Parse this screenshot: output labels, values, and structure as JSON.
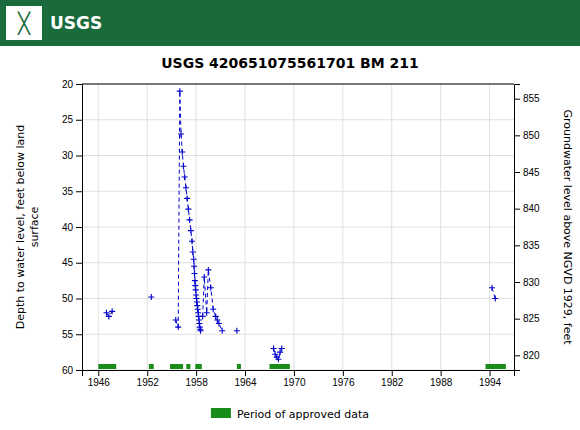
{
  "chart_data": {
    "type": "line",
    "title": "USGS 420651075561701 BM 211",
    "annotations": [
      "╳",
      "USGS"
    ],
    "y_label": "Depth to water level, feet below land\nsurface",
    "y2_label": "Groundwater level above NGVD 1929, feet",
    "xlim": [
      1944,
      1997
    ],
    "xticks": [
      1946,
      1952,
      1958,
      1964,
      1970,
      1976,
      1982,
      1988,
      1994
    ],
    "ylim": [
      60,
      20
    ],
    "yticks": [
      20,
      25,
      30,
      35,
      40,
      45,
      50,
      55,
      60
    ],
    "y2lim": [
      818,
      857
    ],
    "y2ticks": [
      855,
      850,
      845,
      840,
      835,
      830,
      825,
      820
    ],
    "grid": true,
    "legend": "bottom",
    "series": [
      {
        "type": "line",
        "color": "#0000cc",
        "line_style": "dashed",
        "marker": "plus",
        "x": [
          1947.0,
          1947.3,
          1947.7,
          null,
          1952.5,
          null,
          1955.5,
          1955.8,
          1956.0,
          1956.15,
          1956.3,
          1956.45,
          1956.6,
          1956.75,
          1956.9,
          1957.05,
          1957.2,
          1957.35,
          1957.5,
          1957.6,
          1957.7,
          1957.75,
          1957.8,
          1957.85,
          1957.9,
          1957.95,
          1958.0,
          1958.05,
          1958.1,
          1958.15,
          1958.2,
          1958.25,
          1958.3,
          1958.35,
          1958.4,
          1958.45,
          1958.5,
          1958.55,
          null,
          1958.8,
          1959.0,
          1959.3,
          1959.5,
          1959.8,
          1960.1,
          1960.4,
          1960.6,
          1960.8,
          1961.2,
          null,
          1963.0,
          null,
          1967.5,
          1967.7,
          1967.9,
          1968.1,
          1968.3,
          1968.5,
          null,
          1994.3,
          1994.7
        ],
        "values": [
          52.0,
          52.5,
          51.8,
          null,
          49.8,
          null,
          53.0,
          54.0,
          21.0,
          27.0,
          29.5,
          31.5,
          33.0,
          34.5,
          36.0,
          37.5,
          39.0,
          40.5,
          42.0,
          43.5,
          44.5,
          45.5,
          46.5,
          47.5,
          48.2,
          48.8,
          49.5,
          50.0,
          50.5,
          51.0,
          51.5,
          52.0,
          52.5,
          53.0,
          53.5,
          54.0,
          54.3,
          54.5,
          null,
          52.5,
          47.0,
          52.0,
          46.0,
          48.5,
          51.5,
          52.5,
          53.0,
          53.5,
          54.5,
          null,
          54.5,
          null,
          57.0,
          57.8,
          58.2,
          58.5,
          57.5,
          57.0,
          null,
          48.5,
          50.0
        ]
      },
      {
        "type": "range",
        "name": "Period of approved data",
        "color": "#1a8c1a",
        "ranges": [
          [
            1946.0,
            1948.2
          ],
          [
            1952.2,
            1952.8
          ],
          [
            1954.8,
            1956.4
          ],
          [
            1956.8,
            1957.3
          ],
          [
            1957.9,
            1958.7
          ],
          [
            1963.0,
            1963.5
          ],
          [
            1967.0,
            1969.5
          ],
          [
            1993.5,
            1996.0
          ]
        ]
      }
    ]
  }
}
